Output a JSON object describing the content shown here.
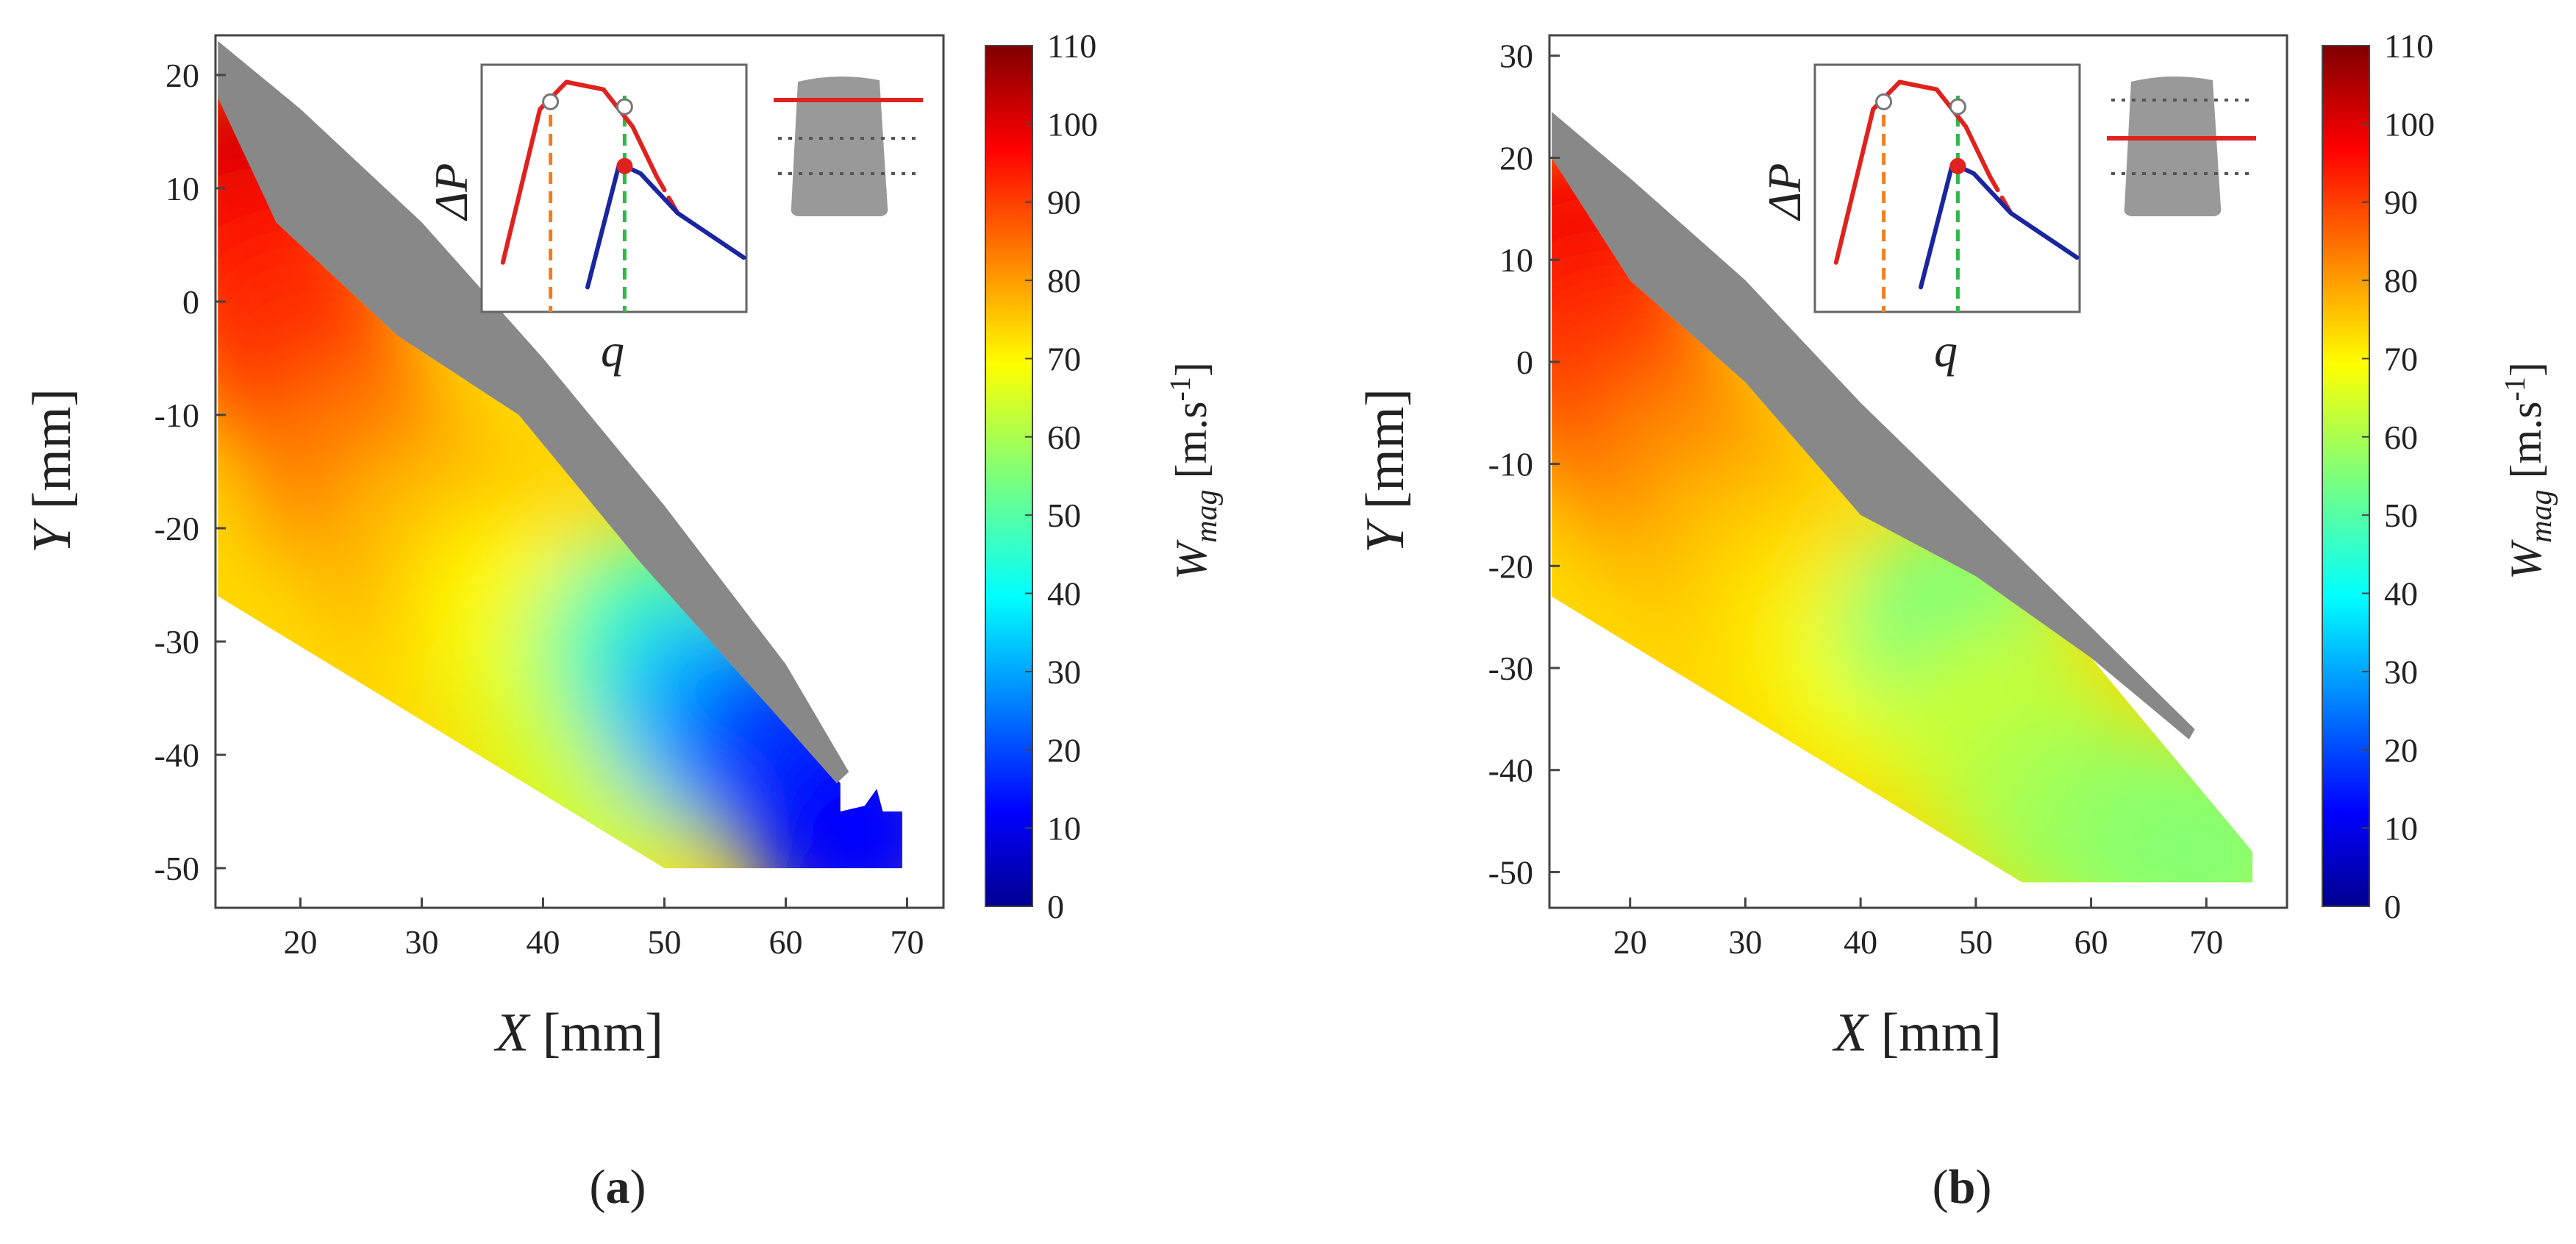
{
  "chart_data": [
    {
      "type": "heatmap",
      "panel_label": "a",
      "xlabel": {
        "var": "X",
        "unit": "[mm]"
      },
      "ylabel": {
        "var": "Y",
        "unit": "[mm]"
      },
      "xlim": [
        13,
        73
      ],
      "ylim": [
        -53.5,
        23.5
      ],
      "xticks": [
        20,
        30,
        40,
        50,
        60,
        70
      ],
      "yticks": [
        20,
        10,
        0,
        -10,
        -20,
        -30,
        -40,
        -50
      ],
      "colorbar": {
        "label_var": "W",
        "label_sub": "mag",
        "label_unit": "[m.s",
        "label_sup": "-1",
        "label_close": "]",
        "range": [
          0,
          110
        ],
        "ticks": [
          110,
          100,
          90,
          80,
          70,
          60,
          50,
          40,
          30,
          20,
          10,
          0
        ],
        "colormap": "jet"
      },
      "blade_outline": [
        [
          13.2,
          23
        ],
        [
          20,
          17
        ],
        [
          30,
          7
        ],
        [
          40,
          -5
        ],
        [
          50,
          -18
        ],
        [
          60,
          -32
        ],
        [
          65.2,
          -41.5
        ],
        [
          64.2,
          -42.5
        ],
        [
          58,
          -35
        ],
        [
          48,
          -23
        ],
        [
          38,
          -10
        ],
        [
          28,
          -3
        ],
        [
          18,
          7
        ],
        [
          13.2,
          18
        ]
      ],
      "domain_outline": [
        [
          13.2,
          20
        ],
        [
          18,
          7
        ],
        [
          28,
          -3
        ],
        [
          38,
          -10
        ],
        [
          48,
          -23
        ],
        [
          58,
          -35
        ],
        [
          64.5,
          -42.5
        ],
        [
          64.5,
          -45
        ],
        [
          66.5,
          -44.5
        ],
        [
          67.5,
          -43
        ],
        [
          68,
          -45
        ],
        [
          69.6,
          -45
        ],
        [
          69.6,
          -50
        ],
        [
          50,
          -50
        ],
        [
          13.2,
          -26
        ]
      ],
      "field_samples": [
        {
          "x": 15,
          "y": 12,
          "w": 101
        },
        {
          "x": 17,
          "y": 2,
          "w": 96
        },
        {
          "x": 20,
          "y": -5,
          "w": 92
        },
        {
          "x": 25,
          "y": -15,
          "w": 84
        },
        {
          "x": 30,
          "y": -22,
          "w": 78
        },
        {
          "x": 34,
          "y": -22,
          "w": 76
        },
        {
          "x": 38,
          "y": -28,
          "w": 70
        },
        {
          "x": 42,
          "y": -35,
          "w": 66
        },
        {
          "x": 46,
          "y": -42,
          "w": 64
        },
        {
          "x": 49,
          "y": -30,
          "w": 48
        },
        {
          "x": 54,
          "y": -36,
          "w": 32
        },
        {
          "x": 60,
          "y": -40,
          "w": 18
        },
        {
          "x": 66,
          "y": -47,
          "w": 12
        }
      ],
      "inset": {
        "ylabel": "ΔP",
        "xlabel": "q",
        "curves": [
          {
            "name": "stage-upper",
            "color": "#e0221e",
            "points": [
              [
                0.08,
                0.2
              ],
              [
                0.22,
                0.82
              ],
              [
                0.32,
                0.93
              ],
              [
                0.46,
                0.9
              ],
              [
                0.57,
                0.75
              ],
              [
                0.66,
                0.55
              ]
            ]
          },
          {
            "name": "stage-upper-extension",
            "color": "#e0221e",
            "dashed": true,
            "points": [
              [
                0.66,
                0.55
              ],
              [
                0.74,
                0.4
              ]
            ]
          },
          {
            "name": "stage-lower",
            "color": "#1a25a0",
            "points": [
              [
                0.4,
                0.1
              ],
              [
                0.52,
                0.6
              ],
              [
                0.6,
                0.56
              ],
              [
                0.74,
                0.4
              ],
              [
                0.99,
                0.22
              ]
            ]
          }
        ],
        "markers": [
          {
            "q": 0.26,
            "dp": 0.85,
            "style": "open-circle"
          },
          {
            "q": 0.54,
            "dp": 0.83,
            "style": "open-circle"
          },
          {
            "q": 0.54,
            "dp": 0.59,
            "style": "filled",
            "color": "#e0221e"
          }
        ],
        "vlines": [
          {
            "q": 0.26,
            "color": "#f07f20"
          },
          {
            "q": 0.54,
            "color": "#2fb84a"
          }
        ]
      },
      "span_icon": {
        "red_line": "top"
      }
    },
    {
      "type": "heatmap",
      "panel_label": "b",
      "xlabel": {
        "var": "X",
        "unit": "[mm]"
      },
      "ylabel": {
        "var": "Y",
        "unit": "[mm]"
      },
      "xlim": [
        13,
        77
      ],
      "ylim": [
        -53.5,
        32
      ],
      "xticks": [
        20,
        30,
        40,
        50,
        60,
        70
      ],
      "yticks": [
        30,
        20,
        10,
        0,
        -10,
        -20,
        -30,
        -40,
        -50
      ],
      "colorbar": {
        "label_var": "W",
        "label_sub": "mag",
        "label_unit": "[m.s",
        "label_sup": "-1",
        "label_close": "]",
        "range": [
          0,
          110
        ],
        "ticks": [
          110,
          100,
          90,
          80,
          70,
          60,
          50,
          40,
          30,
          20,
          10,
          0
        ],
        "colormap": "jet"
      },
      "blade_outline": [
        [
          13.2,
          24.5
        ],
        [
          20,
          18
        ],
        [
          30,
          8
        ],
        [
          40,
          -4
        ],
        [
          50,
          -15
        ],
        [
          60,
          -26
        ],
        [
          69,
          -36
        ],
        [
          68.5,
          -37
        ],
        [
          60,
          -29
        ],
        [
          50,
          -21
        ],
        [
          40,
          -15
        ],
        [
          30,
          -2
        ],
        [
          20,
          8
        ],
        [
          13.2,
          20
        ]
      ],
      "domain_outline": [
        [
          13.2,
          20
        ],
        [
          20,
          8
        ],
        [
          30,
          -2
        ],
        [
          40,
          -15
        ],
        [
          50,
          -21
        ],
        [
          60,
          -29
        ],
        [
          74,
          -48
        ],
        [
          74,
          -51
        ],
        [
          54,
          -51
        ],
        [
          13.2,
          -23
        ]
      ],
      "field_samples": [
        {
          "x": 15,
          "y": 12,
          "w": 98
        },
        {
          "x": 17,
          "y": 2,
          "w": 94
        },
        {
          "x": 20,
          "y": -5,
          "w": 90
        },
        {
          "x": 25,
          "y": -12,
          "w": 82
        },
        {
          "x": 30,
          "y": -20,
          "w": 76
        },
        {
          "x": 36,
          "y": -26,
          "w": 72
        },
        {
          "x": 42,
          "y": -30,
          "w": 68
        },
        {
          "x": 48,
          "y": -26,
          "w": 55
        },
        {
          "x": 52,
          "y": -36,
          "w": 63
        },
        {
          "x": 58,
          "y": -44,
          "w": 60
        },
        {
          "x": 64,
          "y": -47,
          "w": 58
        },
        {
          "x": 70,
          "y": -48,
          "w": 56
        }
      ],
      "inset": {
        "ylabel": "ΔP",
        "xlabel": "q",
        "curves": [
          {
            "name": "stage-upper",
            "color": "#e0221e",
            "points": [
              [
                0.08,
                0.2
              ],
              [
                0.22,
                0.82
              ],
              [
                0.32,
                0.93
              ],
              [
                0.46,
                0.9
              ],
              [
                0.57,
                0.75
              ],
              [
                0.66,
                0.55
              ]
            ]
          },
          {
            "name": "stage-upper-extension",
            "color": "#e0221e",
            "dashed": true,
            "points": [
              [
                0.66,
                0.55
              ],
              [
                0.74,
                0.4
              ]
            ]
          },
          {
            "name": "stage-lower",
            "color": "#1a25a0",
            "points": [
              [
                0.4,
                0.1
              ],
              [
                0.52,
                0.6
              ],
              [
                0.6,
                0.56
              ],
              [
                0.74,
                0.4
              ],
              [
                0.99,
                0.22
              ]
            ]
          }
        ],
        "markers": [
          {
            "q": 0.26,
            "dp": 0.85,
            "style": "open-circle"
          },
          {
            "q": 0.54,
            "dp": 0.83,
            "style": "open-circle"
          },
          {
            "q": 0.54,
            "dp": 0.59,
            "style": "filled",
            "color": "#e0221e"
          }
        ],
        "vlines": [
          {
            "q": 0.26,
            "color": "#f07f20"
          },
          {
            "q": 0.54,
            "color": "#2fb84a"
          }
        ]
      },
      "span_icon": {
        "red_line": "middle"
      }
    }
  ],
  "colors": {
    "blade": "#888888",
    "axis": "#444444",
    "frame": "#666666",
    "red": "#e0221e",
    "blue": "#1a25a0",
    "orange": "#f07f20",
    "green": "#2fb84a"
  }
}
